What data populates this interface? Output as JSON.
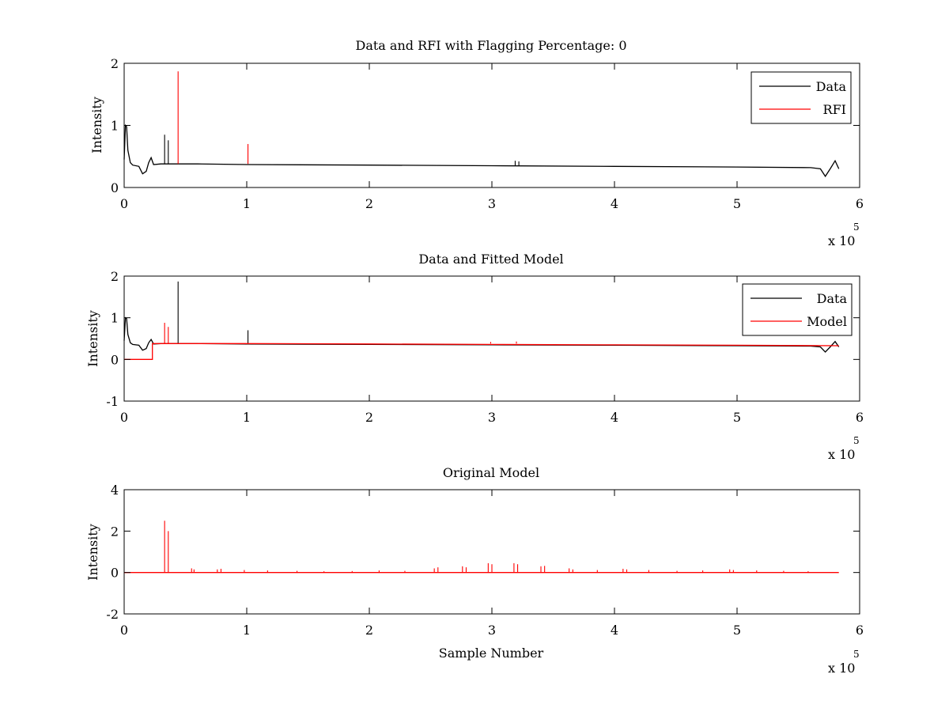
{
  "chart_data": [
    {
      "type": "line",
      "title": "Data and RFI with Flagging Percentage: 0",
      "xlabel": "",
      "ylabel": "Intensity",
      "xlim": [
        0,
        600000
      ],
      "ylim": [
        0,
        2
      ],
      "xticks": [
        "0",
        "1",
        "2",
        "3",
        "4",
        "5",
        "6"
      ],
      "yticks": [
        "0",
        "1",
        "2"
      ],
      "x_multiplier": "x 10",
      "x_multiplier_exp": "5",
      "legend": {
        "position": "top-right"
      },
      "series": [
        {
          "name": "Data",
          "color": "#000000",
          "x": [
            0,
            1000,
            2000,
            3000,
            5000,
            7000,
            12000,
            15000,
            18000,
            20000,
            22000,
            24000,
            30000,
            60000,
            100000,
            200000,
            300000,
            400000,
            500000,
            560000,
            568000,
            572000,
            576000,
            580000,
            583000
          ],
          "y": [
            0.45,
            1.0,
            0.98,
            0.6,
            0.4,
            0.36,
            0.34,
            0.22,
            0.26,
            0.4,
            0.48,
            0.37,
            0.38,
            0.38,
            0.37,
            0.36,
            0.35,
            0.34,
            0.33,
            0.32,
            0.3,
            0.18,
            0.3,
            0.43,
            0.3
          ],
          "spikes": [
            {
              "x": 33000,
              "y": 0.85
            },
            {
              "x": 36000,
              "y": 0.76
            },
            {
              "x": 319000,
              "y": 0.43
            },
            {
              "x": 322000,
              "y": 0.42
            }
          ]
        },
        {
          "name": "RFI",
          "color": "#ff0000",
          "spikes": [
            {
              "x": 44000,
              "y": 1.87
            },
            {
              "x": 101000,
              "y": 0.7
            }
          ]
        }
      ]
    },
    {
      "type": "line",
      "title": "Data and Fitted Model",
      "xlabel": "",
      "ylabel": "Intensity",
      "xlim": [
        0,
        600000
      ],
      "ylim": [
        -1,
        2
      ],
      "xticks": [
        "0",
        "1",
        "2",
        "3",
        "4",
        "5",
        "6"
      ],
      "yticks": [
        "-1",
        "0",
        "1",
        "2"
      ],
      "x_multiplier": "x 10",
      "x_multiplier_exp": "5",
      "legend": {
        "position": "top-right"
      },
      "series": [
        {
          "name": "Data",
          "color": "#000000",
          "x": [
            0,
            1000,
            2000,
            3000,
            5000,
            7000,
            12000,
            15000,
            18000,
            20000,
            22000,
            24000,
            30000,
            60000,
            100000,
            200000,
            300000,
            400000,
            500000,
            560000,
            568000,
            572000,
            576000,
            580000,
            583000
          ],
          "y": [
            0.45,
            1.0,
            0.98,
            0.6,
            0.4,
            0.36,
            0.34,
            0.22,
            0.26,
            0.4,
            0.48,
            0.37,
            0.38,
            0.38,
            0.37,
            0.36,
            0.35,
            0.34,
            0.33,
            0.32,
            0.3,
            0.18,
            0.3,
            0.43,
            0.3
          ],
          "spikes": [
            {
              "x": 44000,
              "y": 1.87
            },
            {
              "x": 101000,
              "y": 0.7
            }
          ]
        },
        {
          "name": "Model",
          "color": "#ff0000",
          "x": [
            0,
            23000,
            23000,
            100000,
            200000,
            300000,
            400000,
            500000,
            583000
          ],
          "y": [
            0,
            0,
            0.38,
            0.38,
            0.37,
            0.36,
            0.35,
            0.34,
            0.33
          ],
          "spikes": [
            {
              "x": 33000,
              "y": 0.88
            },
            {
              "x": 36000,
              "y": 0.78
            },
            {
              "x": 299000,
              "y": 0.42
            },
            {
              "x": 320000,
              "y": 0.43
            }
          ]
        }
      ]
    },
    {
      "type": "line",
      "title": "Original Model",
      "xlabel": "Sample Number",
      "ylabel": "Intensity",
      "xlim": [
        0,
        600000
      ],
      "ylim": [
        -2,
        4
      ],
      "xticks": [
        "0",
        "1",
        "2",
        "3",
        "4",
        "5",
        "6"
      ],
      "yticks": [
        "-2",
        "0",
        "2",
        "4"
      ],
      "x_multiplier": "x 10",
      "x_multiplier_exp": "5",
      "series": [
        {
          "color": "#ff0000",
          "x": [
            0,
            583000
          ],
          "y": [
            0,
            0
          ],
          "spikes": [
            {
              "x": 33000,
              "y": 2.5
            },
            {
              "x": 36000,
              "y": 2.0
            },
            {
              "x": 55000,
              "y": 0.2
            },
            {
              "x": 57000,
              "y": 0.15
            },
            {
              "x": 76000,
              "y": 0.15
            },
            {
              "x": 79000,
              "y": 0.18
            },
            {
              "x": 98000,
              "y": 0.12
            },
            {
              "x": 117000,
              "y": 0.1
            },
            {
              "x": 141000,
              "y": 0.08
            },
            {
              "x": 163000,
              "y": 0.06
            },
            {
              "x": 186000,
              "y": 0.07
            },
            {
              "x": 208000,
              "y": 0.1
            },
            {
              "x": 229000,
              "y": 0.08
            },
            {
              "x": 253000,
              "y": 0.2
            },
            {
              "x": 256000,
              "y": 0.25
            },
            {
              "x": 276000,
              "y": 0.3
            },
            {
              "x": 279000,
              "y": 0.25
            },
            {
              "x": 297000,
              "y": 0.45
            },
            {
              "x": 300000,
              "y": 0.4
            },
            {
              "x": 318000,
              "y": 0.45
            },
            {
              "x": 321000,
              "y": 0.4
            },
            {
              "x": 340000,
              "y": 0.3
            },
            {
              "x": 343000,
              "y": 0.32
            },
            {
              "x": 363000,
              "y": 0.2
            },
            {
              "x": 366000,
              "y": 0.15
            },
            {
              "x": 386000,
              "y": 0.12
            },
            {
              "x": 407000,
              "y": 0.18
            },
            {
              "x": 410000,
              "y": 0.15
            },
            {
              "x": 428000,
              "y": 0.12
            },
            {
              "x": 451000,
              "y": 0.08
            },
            {
              "x": 472000,
              "y": 0.1
            },
            {
              "x": 494000,
              "y": 0.15
            },
            {
              "x": 497000,
              "y": 0.12
            },
            {
              "x": 516000,
              "y": 0.1
            },
            {
              "x": 538000,
              "y": 0.08
            },
            {
              "x": 558000,
              "y": 0.06
            }
          ]
        }
      ]
    }
  ]
}
